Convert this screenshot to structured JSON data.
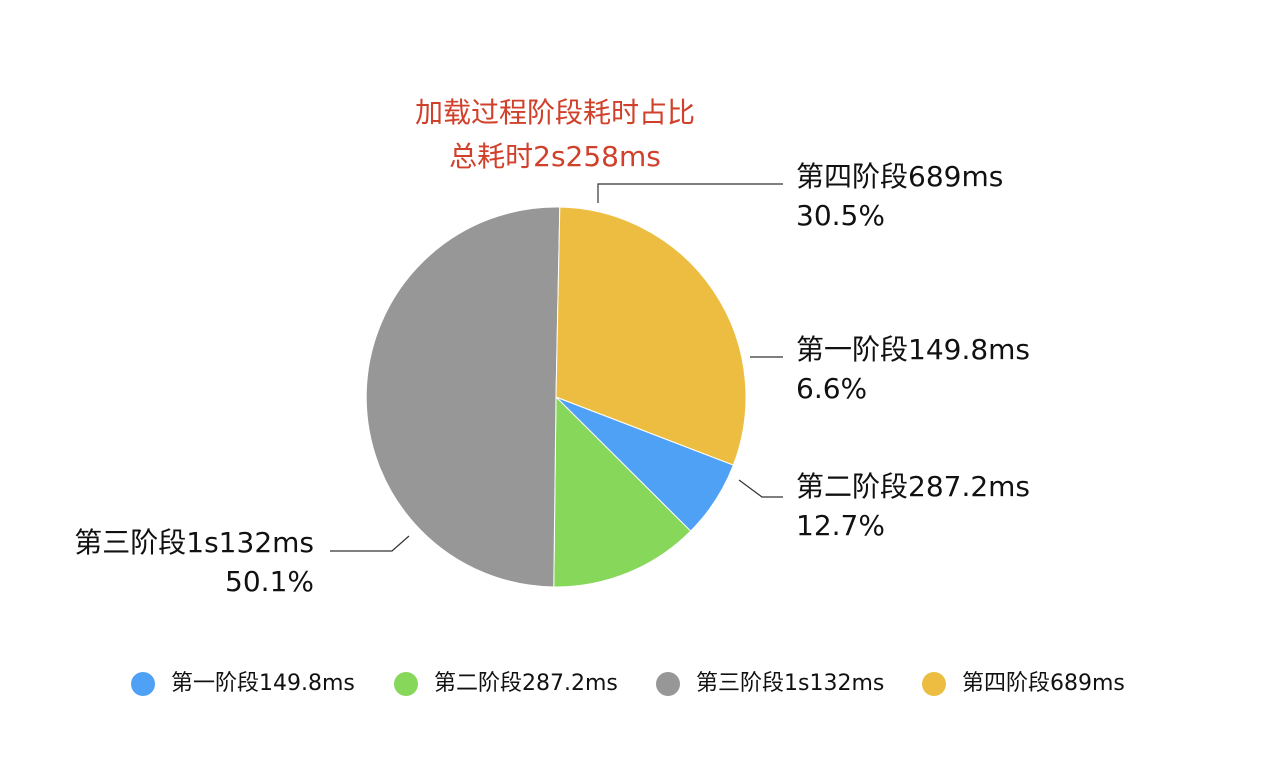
{
  "chart_data": {
    "type": "pie",
    "title": "加载过程阶段耗时占比",
    "subtitle": "总耗时2s258ms",
    "colors": {
      "title": "#d0402b"
    },
    "slices": [
      {
        "name": "第一阶段149.8ms",
        "value": 149.8,
        "percent_label": "6.6%",
        "color": "#4ea1f5"
      },
      {
        "name": "第二阶段287.2ms",
        "value": 287.2,
        "percent_label": "12.7%",
        "color": "#86d75a"
      },
      {
        "name": "第三阶段1s132ms",
        "value": 1132,
        "percent_label": "50.1%",
        "color": "#979797"
      },
      {
        "name": "第四阶段689ms",
        "value": 689,
        "percent_label": "30.5%",
        "color": "#ecbd41"
      }
    ],
    "legend_position": "bottom"
  }
}
